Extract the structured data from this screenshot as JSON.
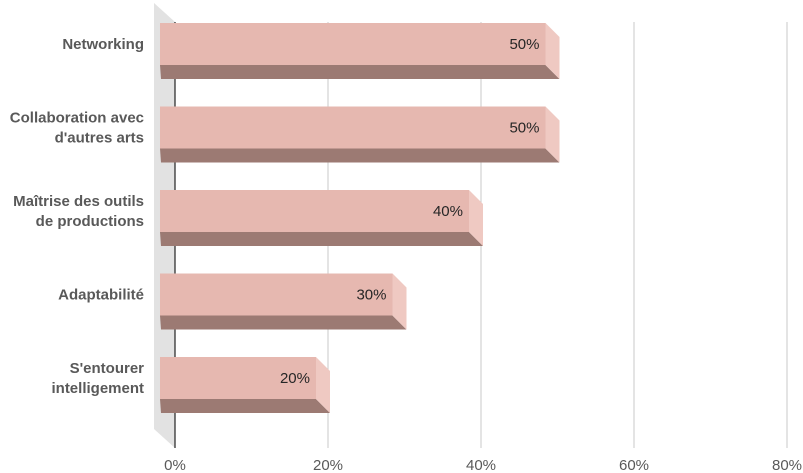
{
  "chart_data": {
    "type": "bar",
    "orientation": "horizontal",
    "style": "3d",
    "categories": [
      [
        "Networking"
      ],
      [
        "Collaboration avec",
        "d'autres arts"
      ],
      [
        "Maîtrise des outils",
        "de productions"
      ],
      [
        "Adaptabilité"
      ],
      [
        "S'entourer",
        "intelligement"
      ]
    ],
    "values": [
      50,
      50,
      40,
      30,
      20
    ],
    "data_labels": [
      "50%",
      "50%",
      "40%",
      "30%",
      "20%"
    ],
    "xlim": [
      0,
      80
    ],
    "xticks": [
      0,
      20,
      40,
      60,
      80
    ],
    "xtick_labels": [
      "0%",
      "20%",
      "40%",
      "60%",
      "80%"
    ],
    "grid": "vertical",
    "legend": "none",
    "colors": {
      "bar_front": "#e6b8b0",
      "bar_side": "#efc9c2",
      "bar_bottom": "#9c7a73",
      "wall": "#e2e2e2",
      "grid": "#c8c8c8",
      "axis": "#222222"
    }
  }
}
